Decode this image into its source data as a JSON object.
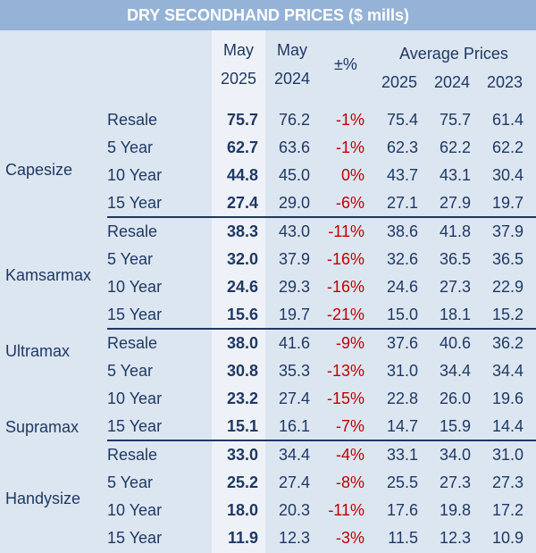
{
  "title": "DRY SECONDHAND PRICES ($ mills)",
  "headers": {
    "may_a": "May",
    "may_a_year": "2025",
    "may_b": "May",
    "may_b_year": "2024",
    "pct": "±%",
    "avg": "Average Prices",
    "avg_2025": "2025",
    "avg_2024": "2024",
    "avg_2023": "2023"
  },
  "groups": [
    {
      "labels": [
        "Capesize"
      ],
      "rows": [
        {
          "age": "Resale",
          "may2025": "75.7",
          "may2024": "76.2",
          "pct": "-1%",
          "avg2025": "75.4",
          "avg2024": "75.7",
          "avg2023": "61.4"
        },
        {
          "age": "5 Year",
          "may2025": "62.7",
          "may2024": "63.6",
          "pct": "-1%",
          "avg2025": "62.3",
          "avg2024": "62.2",
          "avg2023": "62.2"
        },
        {
          "age": "10 Year",
          "may2025": "44.8",
          "may2024": "45.0",
          "pct": "0%",
          "avg2025": "43.7",
          "avg2024": "43.1",
          "avg2023": "30.4"
        },
        {
          "age": "15 Year",
          "may2025": "27.4",
          "may2024": "29.0",
          "pct": "-6%",
          "avg2025": "27.1",
          "avg2024": "27.9",
          "avg2023": "19.7"
        }
      ]
    },
    {
      "labels": [
        "Kamsarmax"
      ],
      "rows": [
        {
          "age": "Resale",
          "may2025": "38.3",
          "may2024": "43.0",
          "pct": "-11%",
          "avg2025": "38.6",
          "avg2024": "41.8",
          "avg2023": "37.9"
        },
        {
          "age": "5 Year",
          "may2025": "32.0",
          "may2024": "37.9",
          "pct": "-16%",
          "avg2025": "32.6",
          "avg2024": "36.5",
          "avg2023": "36.5"
        },
        {
          "age": "10 Year",
          "may2025": "24.6",
          "may2024": "29.3",
          "pct": "-16%",
          "avg2025": "24.6",
          "avg2024": "27.3",
          "avg2023": "22.9"
        },
        {
          "age": "15 Year",
          "may2025": "15.6",
          "may2024": "19.7",
          "pct": "-21%",
          "avg2025": "15.0",
          "avg2024": "18.1",
          "avg2023": "15.2"
        }
      ]
    },
    {
      "labels": [
        "Ultramax",
        "Supramax"
      ],
      "rows": [
        {
          "age": "Resale",
          "may2025": "38.0",
          "may2024": "41.6",
          "pct": "-9%",
          "avg2025": "37.6",
          "avg2024": "40.6",
          "avg2023": "36.2"
        },
        {
          "age": "5 Year",
          "may2025": "30.8",
          "may2024": "35.3",
          "pct": "-13%",
          "avg2025": "31.0",
          "avg2024": "34.4",
          "avg2023": "34.4"
        },
        {
          "age": "10 Year",
          "may2025": "23.2",
          "may2024": "27.4",
          "pct": "-15%",
          "avg2025": "22.8",
          "avg2024": "26.0",
          "avg2023": "19.6"
        },
        {
          "age": "15 Year",
          "may2025": "15.1",
          "may2024": "16.1",
          "pct": "-7%",
          "avg2025": "14.7",
          "avg2024": "15.9",
          "avg2023": "14.4"
        }
      ]
    },
    {
      "labels": [
        "Handysize"
      ],
      "rows": [
        {
          "age": "Resale",
          "may2025": "33.0",
          "may2024": "34.4",
          "pct": "-4%",
          "avg2025": "33.1",
          "avg2024": "34.0",
          "avg2023": "31.0"
        },
        {
          "age": "5 Year",
          "may2025": "25.2",
          "may2024": "27.4",
          "pct": "-8%",
          "avg2025": "25.5",
          "avg2024": "27.3",
          "avg2023": "27.3"
        },
        {
          "age": "10 Year",
          "may2025": "18.0",
          "may2024": "20.3",
          "pct": "-11%",
          "avg2025": "17.6",
          "avg2024": "19.8",
          "avg2023": "17.2"
        },
        {
          "age": "15 Year",
          "may2025": "11.9",
          "may2024": "12.3",
          "pct": "-3%",
          "avg2025": "11.5",
          "avg2024": "12.3",
          "avg2023": "10.9"
        }
      ]
    }
  ]
}
